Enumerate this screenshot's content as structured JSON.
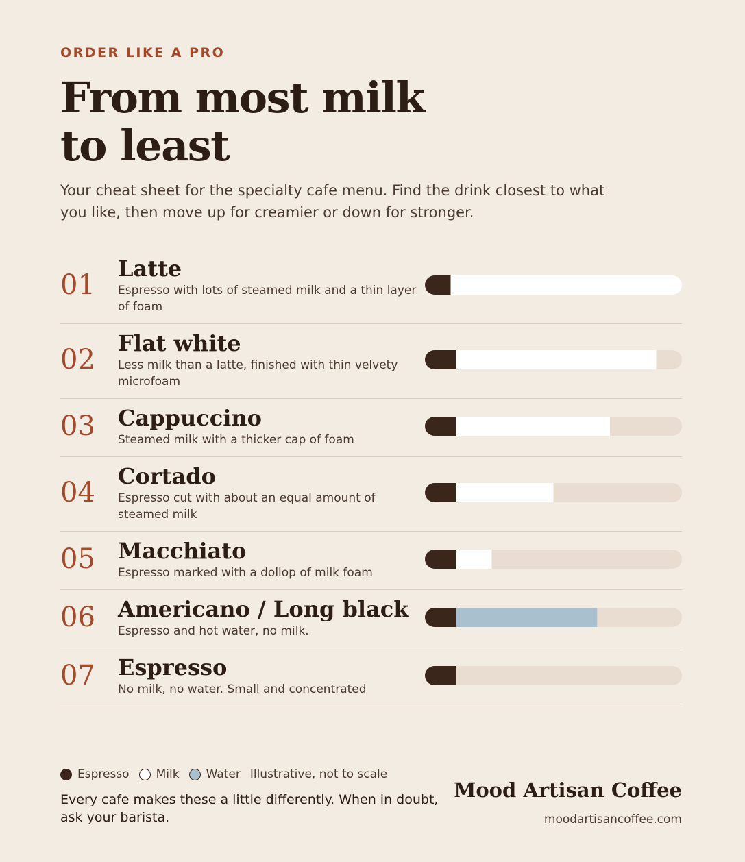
{
  "header": {
    "eyebrow": "ORDER LIKE A PRO",
    "title_lines": [
      "From most milk",
      "to least"
    ],
    "intro": "Your cheat sheet for the specialty cafe menu. Find the drink closest to what you like, then move up for creamier or down for stronger."
  },
  "drinks": {
    "xlim": [
      0,
      100
    ],
    "track_color": "#e8ddd0",
    "items": [
      {
        "number": "01",
        "name": "Latte",
        "description": "Espresso with lots of steamed milk and a thin layer of foam",
        "segments": [
          10,
          90,
          null
        ]
      },
      {
        "number": "02",
        "name": "Flat white",
        "description": "Less milk than a latte, finished with thin velvety microfoam",
        "segments": [
          12,
          78,
          null
        ]
      },
      {
        "number": "03",
        "name": "Cappuccino",
        "description": "Steamed milk with a thicker cap of foam",
        "segments": [
          12,
          60,
          null
        ]
      },
      {
        "number": "04",
        "name": "Cortado",
        "description": "Espresso cut with about an equal amount of steamed milk",
        "segments": [
          12,
          38,
          null
        ]
      },
      {
        "number": "05",
        "name": "Macchiato",
        "description": "Espresso marked with a dollop of milk foam",
        "segments": [
          12,
          14,
          null
        ]
      },
      {
        "number": "06",
        "name": "Americano / Long black",
        "description": "Espresso and hot water, no milk.",
        "segments": [
          12,
          null,
          55
        ]
      },
      {
        "number": "07",
        "name": "Espresso",
        "description": "No milk, no water. Small and concentrated",
        "segments": [
          12,
          null,
          null
        ]
      }
    ]
  },
  "legend": {
    "items": [
      {
        "label": "Espresso",
        "color": "#3b261b"
      },
      {
        "label": "Milk",
        "color": "#ffffff"
      },
      {
        "label": "Water",
        "color": "#a9c1cf"
      }
    ],
    "note": "Illustrative, not to scale"
  },
  "footer": {
    "note": "Every cafe makes these a little differently. When in doubt, ask your barista.",
    "brand": "Mood Artisan Coffee",
    "url": "moodartisancoffee.com"
  }
}
